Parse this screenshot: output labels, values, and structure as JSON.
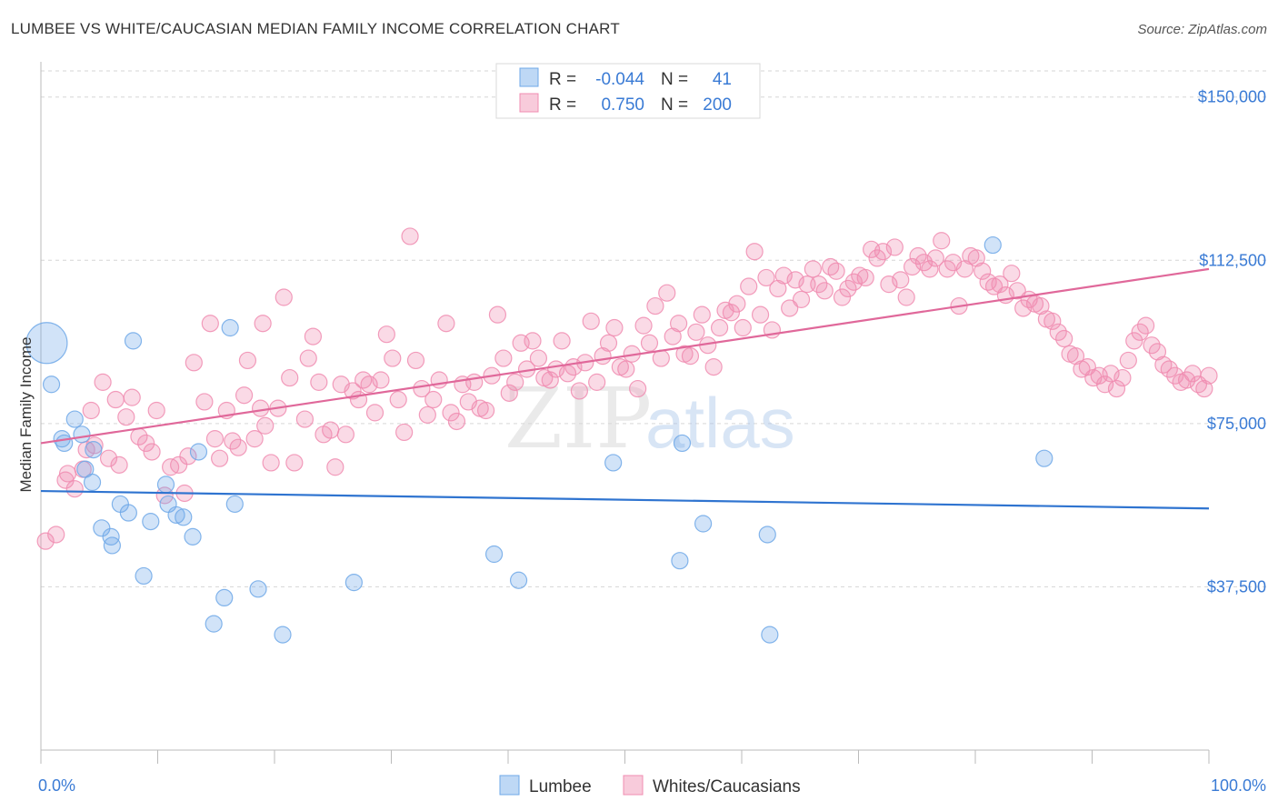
{
  "title": "LUMBEE VS WHITE/CAUCASIAN MEDIAN FAMILY INCOME CORRELATION CHART",
  "source": "Source: ZipAtlas.com",
  "watermark": {
    "zip": "ZIP",
    "atlas": "atlas"
  },
  "legend_top": [
    {
      "r_label": "R =",
      "r_value": "-0.044",
      "n_label": "N =",
      "n_value": "41",
      "color": "#6fa8e8"
    },
    {
      "r_label": "R =",
      "r_value": "0.750",
      "n_label": "N =",
      "n_value": "200",
      "color": "#f08cb0"
    }
  ],
  "legend_bottom": [
    {
      "label": "Lumbee",
      "color": "#6fa8e8"
    },
    {
      "label": "Whites/Caucasians",
      "color": "#f08cb0"
    }
  ],
  "chart_data": {
    "type": "scatter",
    "xlabel": "",
    "ylabel": "Median Family Income",
    "xlim": [
      0,
      100
    ],
    "ylim": [
      0,
      156000
    ],
    "x_tick_labels": {
      "min": "0.0%",
      "max": "100.0%"
    },
    "y_ticks": [
      {
        "value": 37500,
        "label": "$37,500"
      },
      {
        "value": 75000,
        "label": "$75,000"
      },
      {
        "value": 112500,
        "label": "$112,500"
      },
      {
        "value": 150000,
        "label": "$150,000"
      }
    ],
    "grid": true,
    "legend_position": "top-center",
    "series": [
      {
        "name": "Lumbee",
        "color": "#6fa8e8",
        "trend": {
          "x0": 0,
          "y0": 59500,
          "x1": 100,
          "y1": 55500
        },
        "points": [
          [
            0.5,
            93500,
            2.5
          ],
          [
            0.9,
            84000,
            1
          ],
          [
            2.0,
            70500,
            1
          ],
          [
            1.8,
            71500,
            1
          ],
          [
            2.9,
            76000,
            1
          ],
          [
            3.5,
            72500,
            1
          ],
          [
            3.8,
            64500,
            1
          ],
          [
            4.5,
            69000,
            1
          ],
          [
            4.4,
            61500,
            1
          ],
          [
            7.9,
            94000,
            1
          ],
          [
            6.8,
            56500,
            1
          ],
          [
            7.5,
            54500,
            1
          ],
          [
            5.2,
            51000,
            1
          ],
          [
            6.0,
            49000,
            1
          ],
          [
            6.1,
            47000,
            1
          ],
          [
            9.4,
            52500,
            1
          ],
          [
            10.7,
            61000,
            1
          ],
          [
            10.9,
            56500,
            1
          ],
          [
            11.6,
            54000,
            1
          ],
          [
            12.2,
            53500,
            1
          ],
          [
            13.0,
            49000,
            1
          ],
          [
            13.5,
            68500,
            1
          ],
          [
            8.8,
            40000,
            1
          ],
          [
            16.2,
            97000,
            1
          ],
          [
            16.6,
            56500,
            1
          ],
          [
            15.7,
            35000,
            1
          ],
          [
            14.8,
            29000,
            1
          ],
          [
            18.6,
            37000,
            1
          ],
          [
            20.7,
            26500,
            1
          ],
          [
            26.8,
            38500,
            1
          ],
          [
            38.8,
            45000,
            1
          ],
          [
            40.9,
            39000,
            1
          ],
          [
            49.0,
            66000,
            1
          ],
          [
            54.9,
            70500,
            1
          ],
          [
            56.7,
            52000,
            1
          ],
          [
            54.7,
            43500,
            1
          ],
          [
            62.2,
            49500,
            1
          ],
          [
            62.4,
            26500,
            1
          ],
          [
            81.5,
            116000,
            1
          ],
          [
            85.9,
            67000,
            1
          ]
        ]
      },
      {
        "name": "Whites/Caucasians",
        "color": "#f08cb0",
        "trend": {
          "x0": 0,
          "y0": 70500,
          "x1": 100,
          "y1": 110500
        },
        "points": [
          [
            0.4,
            48000,
            1
          ],
          [
            1.3,
            49500,
            1
          ],
          [
            2.1,
            62000,
            1
          ],
          [
            2.3,
            63500,
            1
          ],
          [
            2.9,
            60000,
            1
          ],
          [
            3.6,
            64500,
            1
          ],
          [
            3.9,
            69000,
            1
          ],
          [
            4.3,
            78000,
            1
          ],
          [
            4.6,
            70000,
            1
          ],
          [
            5.3,
            84500,
            1
          ],
          [
            5.8,
            67000,
            1
          ],
          [
            6.4,
            80500,
            1
          ],
          [
            6.7,
            65500,
            1
          ],
          [
            7.3,
            76500,
            1
          ],
          [
            7.8,
            81000,
            1
          ],
          [
            8.4,
            72000,
            1
          ],
          [
            9.0,
            70500,
            1
          ],
          [
            9.5,
            68500,
            1
          ],
          [
            9.9,
            78000,
            1
          ],
          [
            10.6,
            58500,
            1
          ],
          [
            11.1,
            65000,
            1
          ],
          [
            11.8,
            65500,
            1
          ],
          [
            12.3,
            59000,
            1
          ],
          [
            12.6,
            67500,
            1
          ],
          [
            13.1,
            89000,
            1
          ],
          [
            14.0,
            80000,
            1
          ],
          [
            14.5,
            98000,
            1
          ],
          [
            14.9,
            71500,
            1
          ],
          [
            15.3,
            67000,
            1
          ],
          [
            15.9,
            78000,
            1
          ],
          [
            16.4,
            71000,
            1
          ],
          [
            16.9,
            69500,
            1
          ],
          [
            17.4,
            81500,
            1
          ],
          [
            17.7,
            89500,
            1
          ],
          [
            18.3,
            71500,
            1
          ],
          [
            18.8,
            78500,
            1
          ],
          [
            19.2,
            74500,
            1
          ],
          [
            19.7,
            66000,
            1
          ],
          [
            20.3,
            78500,
            1
          ],
          [
            20.8,
            104000,
            1
          ],
          [
            21.3,
            85500,
            1
          ],
          [
            21.7,
            66000,
            1
          ],
          [
            22.6,
            76000,
            1
          ],
          [
            22.9,
            90000,
            1
          ],
          [
            23.3,
            95000,
            1
          ],
          [
            23.8,
            84500,
            1
          ],
          [
            24.2,
            72500,
            1
          ],
          [
            24.8,
            73500,
            1
          ],
          [
            25.2,
            65000,
            1
          ],
          [
            25.7,
            84000,
            1
          ],
          [
            26.1,
            72500,
            1
          ],
          [
            26.7,
            82500,
            1
          ],
          [
            27.2,
            80500,
            1
          ],
          [
            27.6,
            85000,
            1
          ],
          [
            28.1,
            84000,
            1
          ],
          [
            28.6,
            77500,
            1
          ],
          [
            29.1,
            85000,
            1
          ],
          [
            29.6,
            95500,
            1
          ],
          [
            30.1,
            90000,
            1
          ],
          [
            30.6,
            80500,
            1
          ],
          [
            31.1,
            73000,
            1
          ],
          [
            31.6,
            118000,
            1
          ],
          [
            32.1,
            89500,
            1
          ],
          [
            32.6,
            83000,
            1
          ],
          [
            33.1,
            77000,
            1
          ],
          [
            33.6,
            80500,
            1
          ],
          [
            34.1,
            85000,
            1
          ],
          [
            34.7,
            98000,
            1
          ],
          [
            35.1,
            77500,
            1
          ],
          [
            35.6,
            75500,
            1
          ],
          [
            36.1,
            84000,
            1
          ],
          [
            36.6,
            80000,
            1
          ],
          [
            37.1,
            84500,
            1
          ],
          [
            37.6,
            78500,
            1
          ],
          [
            38.1,
            78000,
            1
          ],
          [
            38.6,
            86000,
            1
          ],
          [
            39.1,
            100000,
            1
          ],
          [
            39.6,
            90000,
            1
          ],
          [
            40.1,
            82000,
            1
          ],
          [
            40.6,
            84500,
            1
          ],
          [
            41.1,
            93500,
            1
          ],
          [
            41.6,
            87500,
            1
          ],
          [
            42.1,
            94000,
            1
          ],
          [
            42.6,
            90000,
            1
          ],
          [
            43.1,
            85500,
            1
          ],
          [
            43.6,
            85000,
            1
          ],
          [
            44.1,
            87500,
            1
          ],
          [
            44.6,
            94000,
            1
          ],
          [
            45.1,
            86500,
            1
          ],
          [
            45.6,
            88000,
            1
          ],
          [
            46.1,
            82500,
            1
          ],
          [
            46.6,
            89000,
            1
          ],
          [
            47.1,
            98500,
            1
          ],
          [
            47.6,
            84500,
            1
          ],
          [
            48.1,
            90500,
            1
          ],
          [
            48.6,
            93500,
            1
          ],
          [
            49.1,
            97000,
            1
          ],
          [
            49.6,
            88000,
            1
          ],
          [
            50.1,
            87500,
            1
          ],
          [
            50.6,
            91000,
            1
          ],
          [
            51.1,
            83000,
            1
          ],
          [
            51.6,
            97500,
            1
          ],
          [
            52.1,
            93500,
            1
          ],
          [
            52.6,
            102000,
            1
          ],
          [
            53.1,
            90000,
            1
          ],
          [
            53.6,
            105000,
            1
          ],
          [
            54.1,
            95000,
            1
          ],
          [
            54.6,
            98000,
            1
          ],
          [
            55.1,
            91000,
            1
          ],
          [
            55.6,
            90500,
            1
          ],
          [
            56.1,
            96000,
            1
          ],
          [
            56.6,
            100000,
            1
          ],
          [
            57.1,
            93000,
            1
          ],
          [
            57.6,
            88000,
            1
          ],
          [
            58.1,
            97000,
            1
          ],
          [
            58.6,
            101000,
            1
          ],
          [
            59.1,
            100500,
            1
          ],
          [
            59.6,
            102500,
            1
          ],
          [
            60.1,
            97000,
            1
          ],
          [
            60.6,
            106500,
            1
          ],
          [
            61.1,
            114500,
            1
          ],
          [
            61.6,
            100000,
            1
          ],
          [
            62.1,
            108500,
            1
          ],
          [
            62.6,
            96500,
            1
          ],
          [
            63.1,
            106000,
            1
          ],
          [
            63.6,
            109000,
            1
          ],
          [
            64.1,
            101500,
            1
          ],
          [
            64.6,
            108000,
            1
          ],
          [
            65.1,
            103500,
            1
          ],
          [
            65.6,
            107000,
            1
          ],
          [
            66.1,
            110500,
            1
          ],
          [
            66.6,
            107000,
            1
          ],
          [
            67.1,
            105500,
            1
          ],
          [
            67.6,
            111000,
            1
          ],
          [
            68.1,
            110000,
            1
          ],
          [
            68.6,
            104000,
            1
          ],
          [
            69.1,
            106000,
            1
          ],
          [
            69.6,
            107500,
            1
          ],
          [
            70.1,
            109000,
            1
          ],
          [
            70.6,
            108500,
            1
          ],
          [
            71.1,
            115000,
            1
          ],
          [
            71.6,
            113000,
            1
          ],
          [
            72.1,
            114500,
            1
          ],
          [
            72.6,
            107000,
            1
          ],
          [
            73.1,
            115500,
            1
          ],
          [
            73.6,
            108000,
            1
          ],
          [
            74.1,
            104000,
            1
          ],
          [
            74.6,
            111000,
            1
          ],
          [
            75.1,
            113500,
            1
          ],
          [
            75.6,
            112000,
            1
          ],
          [
            76.1,
            110500,
            1
          ],
          [
            76.6,
            113000,
            1
          ],
          [
            77.1,
            117000,
            1
          ],
          [
            77.6,
            110500,
            1
          ],
          [
            78.1,
            112000,
            1
          ],
          [
            78.6,
            102000,
            1
          ],
          [
            79.1,
            110500,
            1
          ],
          [
            79.6,
            113500,
            1
          ],
          [
            80.1,
            113000,
            1
          ],
          [
            80.6,
            110000,
            1
          ],
          [
            81.1,
            107500,
            1
          ],
          [
            81.6,
            106500,
            1
          ],
          [
            82.1,
            107000,
            1
          ],
          [
            82.6,
            104500,
            1
          ],
          [
            83.1,
            109500,
            1
          ],
          [
            83.6,
            105500,
            1
          ],
          [
            84.1,
            101500,
            1
          ],
          [
            84.6,
            103500,
            1
          ],
          [
            85.1,
            102500,
            1
          ],
          [
            85.6,
            102000,
            1
          ],
          [
            86.1,
            99000,
            1
          ],
          [
            86.6,
            98500,
            1
          ],
          [
            87.1,
            96000,
            1
          ],
          [
            87.6,
            94500,
            1
          ],
          [
            88.1,
            91000,
            1
          ],
          [
            88.6,
            90500,
            1
          ],
          [
            89.1,
            87500,
            1
          ],
          [
            89.6,
            88000,
            1
          ],
          [
            90.1,
            85500,
            1
          ],
          [
            90.6,
            86000,
            1
          ],
          [
            91.1,
            84000,
            1
          ],
          [
            91.6,
            86500,
            1
          ],
          [
            92.1,
            83000,
            1
          ],
          [
            92.6,
            85500,
            1
          ],
          [
            93.1,
            89500,
            1
          ],
          [
            93.6,
            94000,
            1
          ],
          [
            94.1,
            96000,
            1
          ],
          [
            94.6,
            97500,
            1
          ],
          [
            95.1,
            93000,
            1
          ],
          [
            95.6,
            91500,
            1
          ],
          [
            96.1,
            88500,
            1
          ],
          [
            96.6,
            87500,
            1
          ],
          [
            97.1,
            86000,
            1
          ],
          [
            97.6,
            84500,
            1
          ],
          [
            98.1,
            85000,
            1
          ],
          [
            98.6,
            86500,
            1
          ],
          [
            99.1,
            84000,
            1
          ],
          [
            99.6,
            83000,
            1
          ],
          [
            100.0,
            86000,
            1
          ],
          [
            19.0,
            98000,
            1
          ]
        ]
      }
    ]
  }
}
